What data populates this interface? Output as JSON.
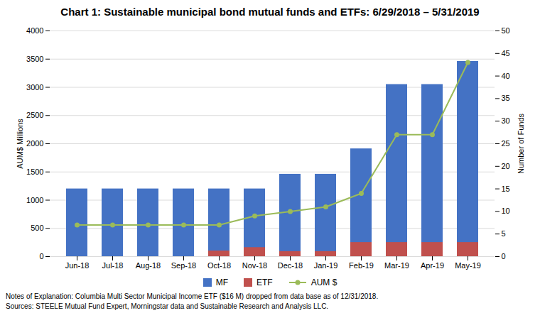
{
  "chart_data": {
    "type": "bar",
    "title": "Chart 1:  Sustainable municipal bond mutual funds and ETFs:  6/29/2018 – 5/31/2019",
    "categories": [
      "Jun-18",
      "Jul-18",
      "Aug-18",
      "Sep-18",
      "Oct-18",
      "Nov-18",
      "Dec-18",
      "Jan-19",
      "Feb-19",
      "Mar-19",
      "Apr-19",
      "May-19"
    ],
    "series": [
      {
        "name": "MF",
        "type": "bar",
        "color": "#4472C4",
        "values": [
          1200,
          1200,
          1200,
          1200,
          1200,
          1200,
          1460,
          1460,
          1910,
          3050,
          3050,
          3460
        ]
      },
      {
        "name": "ETF",
        "type": "bar",
        "color": "#C0504D",
        "values": [
          0,
          0,
          0,
          0,
          100,
          160,
          90,
          90,
          250,
          250,
          250,
          250
        ]
      },
      {
        "name": "AUM $",
        "type": "line",
        "color": "#9BBB59",
        "marker": "circle",
        "axis": "y2",
        "values": [
          7,
          7,
          7,
          7,
          7,
          9,
          10,
          11,
          14,
          27,
          27,
          43
        ]
      }
    ],
    "ylim": [
      0,
      4000
    ],
    "yticks": [
      0,
      500,
      1000,
      1500,
      2000,
      2500,
      3000,
      3500,
      4000
    ],
    "y2lim": [
      0,
      50
    ],
    "y2ticks": [
      0,
      5,
      10,
      15,
      20,
      25,
      30,
      35,
      40,
      45,
      50
    ],
    "ylabel": "AUM$ Millions",
    "y2label": "Number of Funds",
    "grid": true,
    "stacked": false,
    "legend": "bottom",
    "notes": [
      "Notes of Explanation:  Columbia Multi Sector Municipal Income ETF ($16 M) dropped from data base as of 12/31/2018.",
      "Sources:  STEELE Mutual Fund Expert, Morningstar data and Sustainable Research and Analysis LLC."
    ]
  }
}
